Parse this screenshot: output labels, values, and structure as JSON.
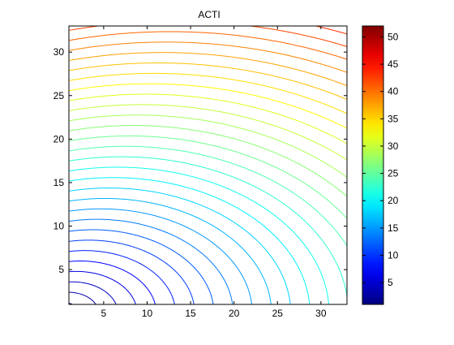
{
  "chart_data": {
    "type": "contour",
    "title": "ACTI",
    "xlabel": "",
    "ylabel": "",
    "xlim": [
      1,
      33
    ],
    "ylim": [
      1,
      33
    ],
    "xticks": [
      5,
      10,
      15,
      20,
      25,
      30
    ],
    "yticks": [
      5,
      10,
      15,
      20,
      25,
      30
    ],
    "colorbar": {
      "colormap": "jet",
      "clim": [
        1,
        52
      ],
      "ticks": [
        5,
        10,
        15,
        20,
        25,
        30,
        35,
        40,
        45,
        50
      ]
    },
    "contour_levels": {
      "min": 1.5,
      "max": 51.5,
      "step": 1.5
    },
    "grid": false,
    "legend": "none"
  }
}
